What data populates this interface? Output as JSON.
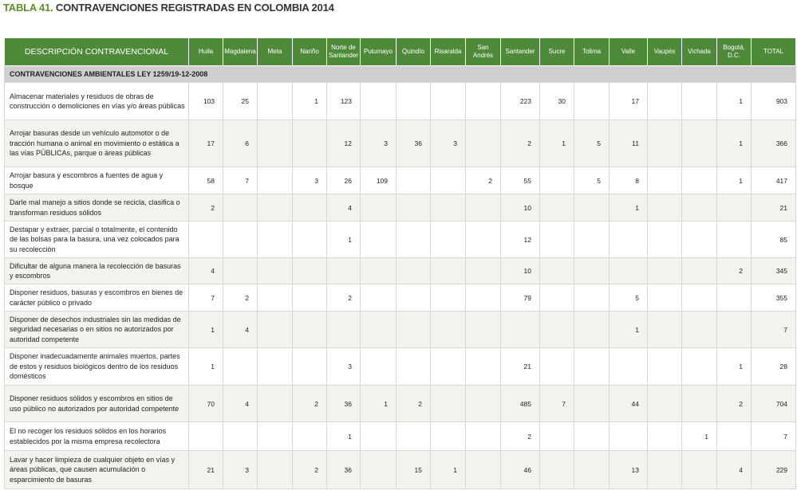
{
  "title": {
    "label": "TABLA 41.",
    "text": "CONTRAVENCIONES REGISTRADAS EN COLOMBIA 2014"
  },
  "table": {
    "header": [
      "DESCRIPCIÓN CONTRAVENCIONAL",
      "Huila",
      "Magdalena",
      "Meta",
      "Nariño",
      "Norte de Santander",
      "Putumayo",
      "Quindío",
      "Risaralda",
      "San Andrés",
      "Santander",
      "Sucre",
      "Tolima",
      "Valle",
      "Vaupés",
      "Vichada",
      "Bogotá, D.C.",
      "TOTAL"
    ],
    "section": "CONTRAVENCIONES AMBIENTALES LEY 1259/19-12-2008",
    "rows": [
      [
        "Almacenar materiales y residuos de obras de construcción o demoliciones en vías y/o áreas públicas",
        103,
        25,
        null,
        1,
        123,
        null,
        null,
        null,
        null,
        223,
        30,
        null,
        17,
        null,
        null,
        1,
        903
      ],
      [
        "Arrojar basuras desde un vehículo automotor o de tracción humana o animal en movimiento o estática a las vías PÚBLICAs, parque o áreas públicas",
        17,
        6,
        null,
        null,
        12,
        3,
        36,
        3,
        null,
        2,
        1,
        5,
        11,
        null,
        null,
        1,
        366
      ],
      [
        "Arrojar basura y escombros a fuentes de agua y bosque",
        58,
        7,
        null,
        3,
        26,
        109,
        null,
        null,
        2,
        55,
        null,
        5,
        8,
        null,
        null,
        1,
        417
      ],
      [
        "Darle mal manejo a sitios donde se recicla, clasifica o transforman residuos sólidos",
        2,
        null,
        null,
        null,
        4,
        null,
        null,
        null,
        null,
        10,
        null,
        null,
        1,
        null,
        null,
        null,
        21
      ],
      [
        "Destapar y extraer, parcial o totalmente, el contenido de las bolsas para la basura, una vez colocados para su recolección",
        null,
        null,
        null,
        null,
        1,
        null,
        null,
        null,
        null,
        12,
        null,
        null,
        null,
        null,
        null,
        null,
        85
      ],
      [
        "Dificultar de alguna manera la recolección de basuras y escombros",
        4,
        null,
        null,
        null,
        null,
        null,
        null,
        null,
        null,
        10,
        null,
        null,
        null,
        null,
        null,
        2,
        345
      ],
      [
        "Disponer residuos, basuras y escombros en bienes de carácter público o privado",
        7,
        2,
        null,
        null,
        2,
        null,
        null,
        null,
        null,
        79,
        null,
        null,
        5,
        null,
        null,
        null,
        355
      ],
      [
        "Disponer de desechos industriales sin las medidas de seguridad necesarias o en sitios no autorizados por autoridad competente",
        1,
        4,
        null,
        null,
        null,
        null,
        null,
        null,
        null,
        null,
        null,
        null,
        1,
        null,
        null,
        null,
        7
      ],
      [
        "Disponer inadecuadamente animales muertos, partes de estos y residuos biológicos dentro de los residuos domésticos",
        1,
        null,
        null,
        null,
        3,
        null,
        null,
        null,
        null,
        21,
        null,
        null,
        null,
        null,
        null,
        1,
        28
      ],
      [
        "Disponer residuos sólidos y escombros en sitios de uso público no autorizados por autoridad competente",
        70,
        4,
        null,
        2,
        36,
        1,
        2,
        null,
        null,
        485,
        7,
        null,
        44,
        null,
        null,
        2,
        704
      ],
      [
        "El no recoger los residuos sólidos en los horarios establecidos por la misma empresa recolectora",
        null,
        null,
        null,
        null,
        1,
        null,
        null,
        null,
        null,
        2,
        null,
        null,
        null,
        null,
        1,
        null,
        7
      ],
      [
        "Lavar y hacer limpieza de cualquier objeto en vías y áreas públicas, que causen acumulación o esparcimiento de basuras",
        21,
        3,
        null,
        2,
        36,
        null,
        15,
        1,
        null,
        46,
        null,
        null,
        13,
        null,
        null,
        4,
        229
      ]
    ]
  }
}
